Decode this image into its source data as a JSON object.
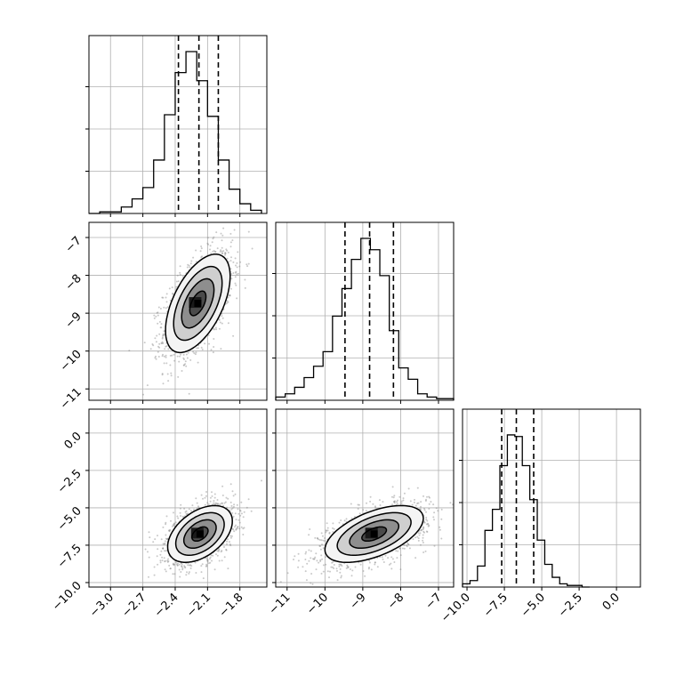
{
  "chart_data": {
    "type": "corner",
    "parameters": [
      {
        "id": "p0",
        "range": [
          -3.2,
          -1.55
        ],
        "ticks": [
          -3.0,
          -2.7,
          -2.4,
          -2.1,
          -1.8
        ],
        "tick_labels": [
          "−3.0",
          "−2.7",
          "−2.4",
          "−2.1",
          "−1.8"
        ],
        "quantiles": [
          -2.37,
          -2.18,
          -2.0
        ],
        "hist_edges": [
          -3.2,
          -3.1,
          -3.0,
          -2.9,
          -2.8,
          -2.7,
          -2.6,
          -2.5,
          -2.4,
          -2.3,
          -2.2,
          -2.1,
          -2.0,
          -1.9,
          -1.8,
          -1.7,
          -1.6
        ],
        "hist_counts": [
          0.0,
          0.01,
          0.01,
          0.04,
          0.09,
          0.16,
          0.33,
          0.61,
          0.87,
          1.0,
          0.82,
          0.6,
          0.33,
          0.15,
          0.06,
          0.02
        ]
      },
      {
        "id": "p1",
        "range": [
          -11.3,
          -6.6
        ],
        "ticks": [
          -11,
          -10,
          -9,
          -8,
          -7
        ],
        "tick_labels": [
          "−11",
          "−10",
          "−9",
          "−8",
          "−7"
        ],
        "quantiles": [
          -9.47,
          -8.82,
          -8.19
        ],
        "hist_edges": [
          -11.3,
          -11.05,
          -10.8,
          -10.55,
          -10.3,
          -10.05,
          -9.8,
          -9.55,
          -9.3,
          -9.05,
          -8.8,
          -8.55,
          -8.3,
          -8.05,
          -7.8,
          -7.55,
          -7.3,
          -7.05,
          -6.8,
          -6.6
        ],
        "hist_counts": [
          0.02,
          0.04,
          0.08,
          0.14,
          0.21,
          0.3,
          0.52,
          0.69,
          0.87,
          1.0,
          0.93,
          0.77,
          0.43,
          0.2,
          0.13,
          0.04,
          0.02,
          0.01,
          0.01
        ]
      },
      {
        "id": "p2",
        "range": [
          -10.3,
          1.6
        ],
        "ticks": [
          -10.0,
          -7.5,
          -5.0,
          -2.5,
          0.0
        ],
        "tick_labels": [
          "−10.0",
          "−7.5",
          "−5.0",
          "−2.5",
          "0.0"
        ],
        "quantiles": [
          -7.68,
          -6.7,
          -5.54
        ],
        "hist_edges": [
          -10.3,
          -9.8,
          -9.3,
          -8.8,
          -8.3,
          -7.8,
          -7.3,
          -6.8,
          -6.3,
          -5.8,
          -5.3,
          -4.8,
          -4.3,
          -3.8,
          -3.3,
          -2.8,
          -2.3,
          -1.8
        ],
        "hist_counts": [
          0.02,
          0.04,
          0.13,
          0.35,
          0.48,
          0.75,
          0.94,
          0.93,
          0.75,
          0.54,
          0.29,
          0.14,
          0.06,
          0.02,
          0.01,
          0.01,
          0.0
        ]
      }
    ],
    "panels": [
      {
        "x_param": 0,
        "y_param": 1,
        "center": [
          -2.19,
          -8.74
        ],
        "sigma": [
          0.15,
          0.65
        ],
        "rho": 0.55,
        "contour_levels": [
          0.5,
          1.0,
          1.5,
          2.0
        ]
      },
      {
        "x_param": 0,
        "y_param": 2,
        "center": [
          -2.17,
          -6.75
        ],
        "sigma": [
          0.15,
          0.95
        ],
        "rho": 0.45,
        "contour_levels": [
          0.5,
          1.0,
          1.5,
          2.0
        ]
      },
      {
        "x_param": 1,
        "y_param": 2,
        "center": [
          -8.7,
          -6.75
        ],
        "sigma": [
          0.65,
          0.95
        ],
        "rho": 0.55,
        "contour_levels": [
          0.5,
          1.0,
          1.5,
          2.0
        ]
      }
    ],
    "grid": true,
    "colors": {
      "line": "#000000",
      "grid": "#b0b0b0",
      "scatter": "#888888"
    }
  }
}
